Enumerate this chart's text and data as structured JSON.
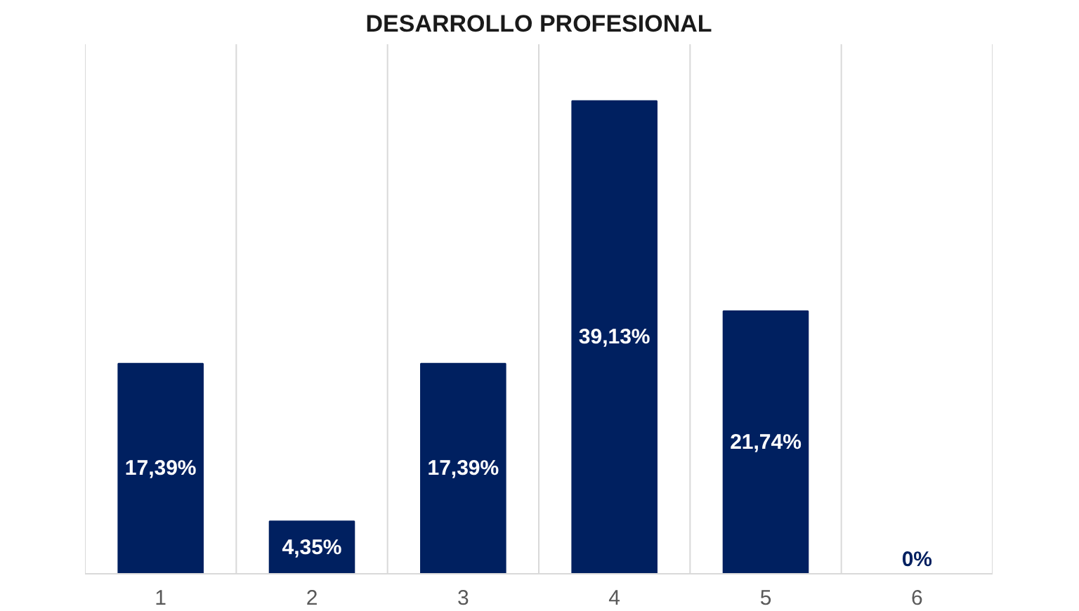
{
  "chart_data": {
    "type": "bar",
    "title": "DESARROLLO PROFESIONAL",
    "categories": [
      "1",
      "2",
      "3",
      "4",
      "5",
      "6"
    ],
    "values": [
      17.39,
      4.35,
      17.39,
      39.13,
      21.74,
      0
    ],
    "value_labels": [
      "17,39%",
      "4,35%",
      "17,39%",
      "39,13%",
      "21,74%",
      "0%"
    ],
    "color": "#002060",
    "grid": "x"
  }
}
